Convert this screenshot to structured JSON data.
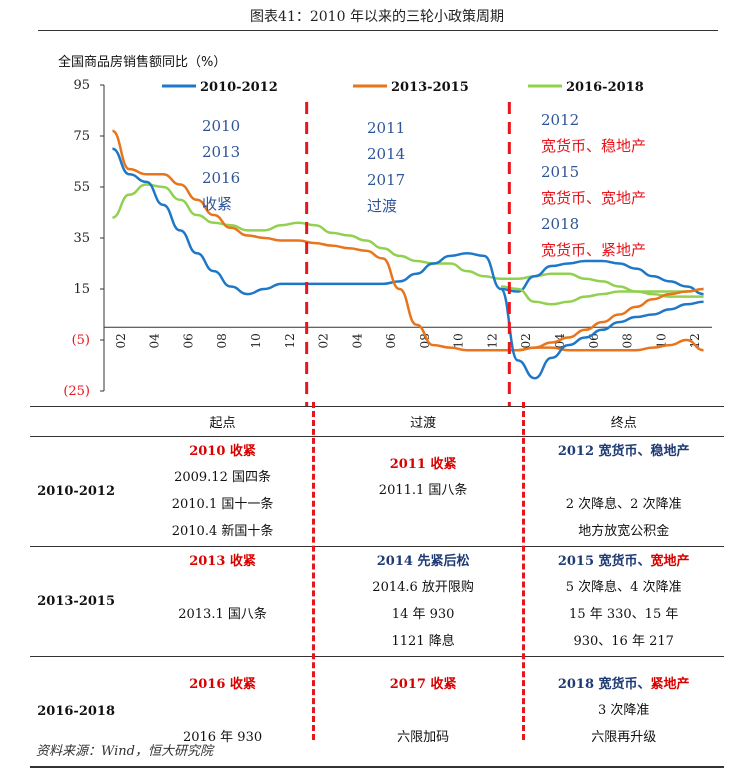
{
  "figure_title": "图表41：2010 年以来的三轮小政策周期",
  "source_note": "资料来源：Wind，恒大研究院",
  "colors": {
    "series_2010_2012": "#1f77c8",
    "series_2013_2015": "#e8741c",
    "series_2016_2018": "#92d050",
    "divider": "#e8151b",
    "annotation_blue": "#2f5597",
    "annotation_red": "#e8151b",
    "table_red": "#d90000",
    "table_blue": "#1f3b73"
  },
  "chart_data": {
    "type": "line",
    "ylabel": "全国商品房销售额同比（%）",
    "ylim": [
      -25,
      95
    ],
    "yticks": [
      95,
      75,
      55,
      35,
      15,
      -5,
      -25
    ],
    "ytick_labels": [
      "95",
      "75",
      "55",
      "35",
      "15",
      "(5)",
      "(25)"
    ],
    "xtick_labels": [
      "02",
      "04",
      "06",
      "08",
      "10",
      "12",
      "02",
      "04",
      "06",
      "08",
      "10",
      "12",
      "02",
      "04",
      "06",
      "08",
      "10",
      "12"
    ],
    "legend_position": "top",
    "grid": false,
    "series": [
      {
        "name": "2010-2012",
        "x": [
          1,
          2,
          3,
          4,
          5,
          6,
          7,
          8,
          9,
          10,
          11,
          12,
          13,
          14,
          15,
          16,
          17,
          18,
          19,
          20,
          21,
          22,
          23,
          24,
          25,
          26,
          27,
          28,
          29,
          30,
          31,
          32,
          33,
          34,
          35,
          36
        ],
        "values": [
          70,
          60,
          57,
          48,
          38,
          29,
          22,
          16,
          13,
          15,
          17,
          17,
          17,
          17,
          17,
          17,
          17,
          18,
          21,
          25,
          28,
          29,
          28,
          15,
          14,
          20,
          24,
          25,
          26,
          26,
          25,
          23,
          20,
          18,
          16,
          13
        ]
      },
      {
        "name": "2013-2015",
        "x": [
          1,
          2,
          3,
          4,
          5,
          6,
          7,
          8,
          9,
          10,
          11,
          12,
          13,
          14,
          15,
          16,
          17,
          18,
          19,
          20,
          21,
          22,
          23,
          24,
          25,
          26,
          27,
          28,
          29,
          30,
          31,
          32,
          33,
          34,
          35,
          36
        ],
        "values": [
          77,
          62,
          60,
          60,
          56,
          50,
          44,
          39,
          36,
          35,
          34,
          34,
          33,
          32,
          31,
          30,
          27,
          15,
          1,
          -7,
          -8,
          -9,
          -9,
          -9,
          -9,
          -8,
          -8,
          -9,
          -9,
          -9,
          -9,
          -9,
          -8,
          -7,
          -5,
          -9
        ],
        "x_offset_months": 12
      },
      {
        "name": "2016-2018",
        "x": [
          1,
          2,
          3,
          4,
          5,
          6,
          7,
          8,
          9,
          10,
          11,
          12,
          13,
          14,
          15,
          16,
          17,
          18,
          19,
          20,
          21,
          22,
          23,
          24,
          25,
          26,
          27,
          28,
          29,
          30,
          31,
          32,
          33,
          34,
          35,
          36
        ],
        "values": [
          43,
          52,
          56,
          55,
          50,
          44,
          41,
          40,
          38,
          38,
          40,
          41,
          40,
          37,
          36,
          34,
          31,
          28,
          26,
          25,
          25,
          22,
          20,
          19,
          19,
          20,
          21,
          21,
          19,
          18,
          16,
          14,
          14,
          14,
          14,
          15
        ],
        "x_offset_months": 24
      }
    ],
    "series_2014_2015": {
      "x": [
        25,
        26,
        27,
        28,
        29,
        30,
        31,
        32,
        33,
        34,
        35,
        36
      ],
      "values": [
        -9,
        -8,
        -6,
        -4,
        -1,
        2,
        5,
        8,
        11,
        13,
        14,
        15
      ]
    },
    "series_2016_cont": {
      "x": [
        24,
        25,
        26,
        27,
        28,
        29,
        30,
        31,
        32,
        33,
        34,
        35,
        36
      ],
      "values": [
        16,
        15,
        10,
        9,
        10,
        12,
        13,
        14,
        14,
        13,
        12,
        12,
        12
      ]
    },
    "series_2012_cont": {
      "x": [
        24,
        25,
        26,
        27,
        28,
        29,
        30,
        31,
        32,
        33,
        34,
        35,
        36
      ],
      "values": [
        15,
        -13,
        -20,
        -12,
        -7,
        -4,
        -1,
        2,
        4,
        5,
        7,
        9,
        10
      ]
    },
    "annotations": {
      "left": [
        "2010",
        "2013",
        "2016",
        "收紧"
      ],
      "middle": [
        "2011",
        "2014",
        "2017",
        "过渡"
      ],
      "right": [
        {
          "text": "2012",
          "color": "blue"
        },
        {
          "text": "宽货币、稳地产",
          "color": "red"
        },
        {
          "text": "2015",
          "color": "blue"
        },
        {
          "text": "宽货币、宽地产",
          "color": "red"
        },
        {
          "text": "2018",
          "color": "blue"
        },
        {
          "text": "宽货币、紧地产",
          "color": "red"
        }
      ]
    }
  },
  "table": {
    "headers": [
      "",
      "起点",
      "过渡",
      "终点"
    ],
    "rows": [
      {
        "label": "2010-2012",
        "start": {
          "head": "2010 收紧",
          "lines": [
            "2009.12  国四条",
            "2010.1  国十一条",
            "2010.4  新国十条"
          ]
        },
        "mid": {
          "head": "2011 收紧",
          "lines": [
            "2011.1  国八条"
          ]
        },
        "end": {
          "head_a": "2012 宽货币、",
          "head_b": "稳地产",
          "lines": [
            "2 次降息、2 次降准",
            "地方放宽公积金"
          ]
        }
      },
      {
        "label": "2013-2015",
        "start": {
          "head": "2013 收紧",
          "lines": [
            "2013.1  国八条"
          ]
        },
        "mid": {
          "head": "2014 先紧后松",
          "lines": [
            "2014.6  放开限购",
            "14 年 930",
            "1121 降息"
          ]
        },
        "end": {
          "head_a": "2015 宽货币、",
          "head_b": "宽地产",
          "lines": [
            "5 次降息、4 次降准",
            "15 年 330、15 年",
            "930、16 年 217"
          ]
        }
      },
      {
        "label": "2016-2018",
        "start": {
          "head": "2016 收紧",
          "lines": [
            "2016 年 930"
          ]
        },
        "mid": {
          "head": "2017 收紧",
          "lines": [
            "六限加码"
          ]
        },
        "end": {
          "head_a": "2018 宽货币、",
          "head_b": "紧地产",
          "lines": [
            "3 次降准",
            "六限再升级"
          ]
        }
      }
    ]
  }
}
